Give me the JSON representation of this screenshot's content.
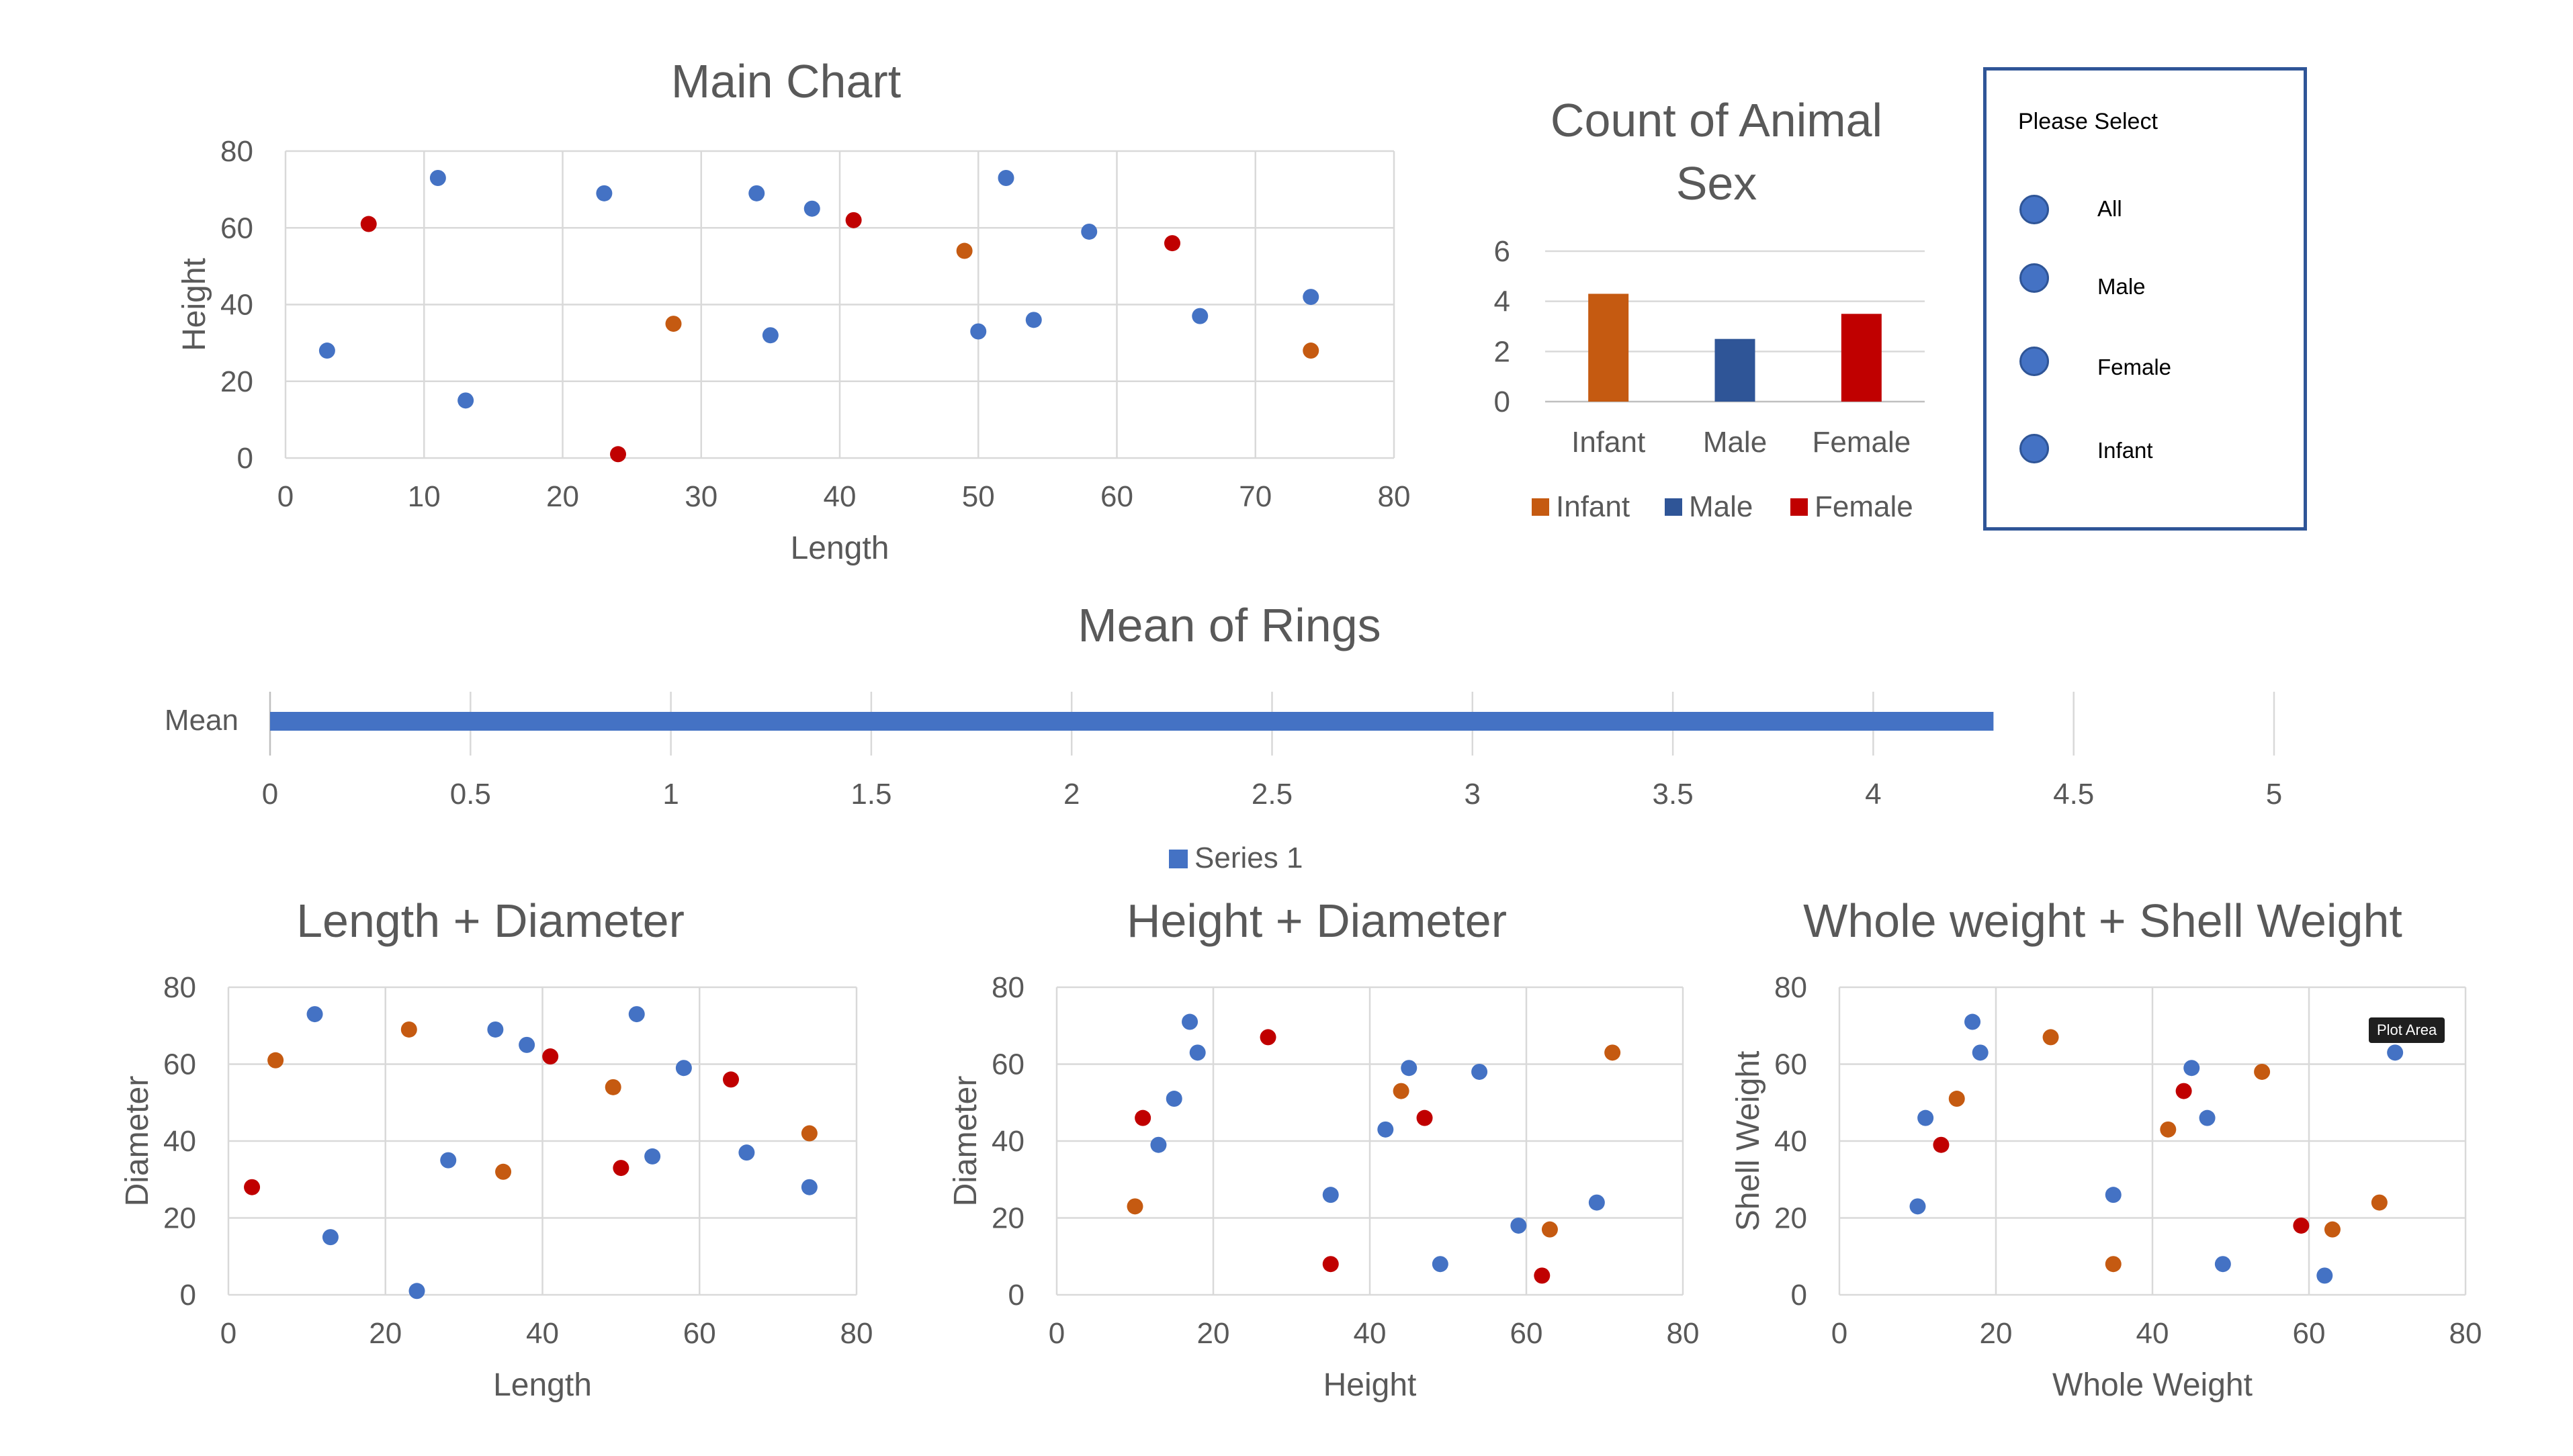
{
  "colors": {
    "infant": "#c55a11",
    "male": "#2f5597",
    "female": "#c00000",
    "blue_point": "#4472c4",
    "orange_point": "#c55a11",
    "red_point": "#c00000",
    "bar_series": "#4472c4"
  },
  "slicer": {
    "title": "Please Select",
    "items": [
      {
        "label": "All"
      },
      {
        "label": "Male"
      },
      {
        "label": "Female"
      },
      {
        "label": "Infant"
      }
    ]
  },
  "tooltip": {
    "label": "Plot Area"
  },
  "chart_data": [
    {
      "type": "scatter",
      "title": "Main Chart",
      "xlabel": "Length",
      "ylabel": "Height",
      "xlim": [
        0,
        80
      ],
      "xticks": [
        0,
        10,
        20,
        30,
        40,
        50,
        60,
        70,
        80
      ],
      "ylim": [
        0,
        80
      ],
      "yticks": [
        0,
        20,
        40,
        60,
        80
      ],
      "grid": true,
      "points": [
        {
          "x": 3,
          "y": 28,
          "color": "blue"
        },
        {
          "x": 6,
          "y": 61,
          "color": "red"
        },
        {
          "x": 11,
          "y": 73,
          "color": "blue"
        },
        {
          "x": 13,
          "y": 15,
          "color": "blue"
        },
        {
          "x": 23,
          "y": 69,
          "color": "blue"
        },
        {
          "x": 24,
          "y": 1,
          "color": "red"
        },
        {
          "x": 28,
          "y": 35,
          "color": "orange"
        },
        {
          "x": 34,
          "y": 69,
          "color": "blue"
        },
        {
          "x": 35,
          "y": 32,
          "color": "blue"
        },
        {
          "x": 38,
          "y": 65,
          "color": "blue"
        },
        {
          "x": 41,
          "y": 62,
          "color": "red"
        },
        {
          "x": 49,
          "y": 54,
          "color": "orange"
        },
        {
          "x": 50,
          "y": 33,
          "color": "blue"
        },
        {
          "x": 52,
          "y": 73,
          "color": "blue"
        },
        {
          "x": 54,
          "y": 36,
          "color": "blue"
        },
        {
          "x": 58,
          "y": 59,
          "color": "blue"
        },
        {
          "x": 64,
          "y": 56,
          "color": "red"
        },
        {
          "x": 66,
          "y": 37,
          "color": "blue"
        },
        {
          "x": 74,
          "y": 28,
          "color": "orange"
        },
        {
          "x": 74,
          "y": 42,
          "color": "blue"
        }
      ]
    },
    {
      "type": "bar",
      "title": "Count of Animal Sex",
      "title_lines": [
        "Count of Animal",
        "Sex"
      ],
      "categories": [
        "Infant",
        "Male",
        "Female"
      ],
      "values": [
        4.3,
        2.5,
        3.5
      ],
      "ylim": [
        0,
        6
      ],
      "yticks": [
        0,
        2,
        4,
        6
      ],
      "legend": [
        "Infant",
        "Male",
        "Female"
      ],
      "legend_position": "bottom",
      "grid": true
    },
    {
      "type": "bar",
      "orientation": "horizontal",
      "title": "Mean of Rings",
      "categories": [
        "Mean"
      ],
      "series": [
        {
          "name": "Series 1",
          "values": [
            4.3
          ]
        }
      ],
      "xlim": [
        0,
        5
      ],
      "xticks": [
        "0",
        "0.5",
        "1",
        "1.5",
        "2",
        "2.5",
        "3",
        "3.5",
        "4",
        "4.5",
        "5"
      ],
      "legend_position": "bottom",
      "grid": true
    },
    {
      "type": "scatter",
      "title": "Length + Diameter",
      "xlabel": "Length",
      "ylabel": "Diameter",
      "xlim": [
        0,
        80
      ],
      "xticks": [
        0,
        20,
        40,
        60,
        80
      ],
      "ylim": [
        0,
        80
      ],
      "yticks": [
        0,
        20,
        40,
        60,
        80
      ],
      "grid": true,
      "points": [
        {
          "x": 3,
          "y": 28,
          "color": "red"
        },
        {
          "x": 6,
          "y": 61,
          "color": "orange"
        },
        {
          "x": 11,
          "y": 73,
          "color": "blue"
        },
        {
          "x": 13,
          "y": 15,
          "color": "blue"
        },
        {
          "x": 23,
          "y": 69,
          "color": "orange"
        },
        {
          "x": 24,
          "y": 1,
          "color": "blue"
        },
        {
          "x": 28,
          "y": 35,
          "color": "blue"
        },
        {
          "x": 34,
          "y": 69,
          "color": "blue"
        },
        {
          "x": 35,
          "y": 32,
          "color": "orange"
        },
        {
          "x": 38,
          "y": 65,
          "color": "blue"
        },
        {
          "x": 41,
          "y": 62,
          "color": "red"
        },
        {
          "x": 49,
          "y": 54,
          "color": "orange"
        },
        {
          "x": 50,
          "y": 33,
          "color": "red"
        },
        {
          "x": 52,
          "y": 73,
          "color": "blue"
        },
        {
          "x": 54,
          "y": 36,
          "color": "blue"
        },
        {
          "x": 58,
          "y": 59,
          "color": "blue"
        },
        {
          "x": 64,
          "y": 56,
          "color": "red"
        },
        {
          "x": 66,
          "y": 37,
          "color": "blue"
        },
        {
          "x": 74,
          "y": 28,
          "color": "blue"
        },
        {
          "x": 74,
          "y": 42,
          "color": "orange"
        }
      ]
    },
    {
      "type": "scatter",
      "title": "Height + Diameter",
      "xlabel": "Height",
      "ylabel": "Diameter",
      "xlim": [
        0,
        80
      ],
      "xticks": [
        0,
        20,
        40,
        60,
        80
      ],
      "ylim": [
        0,
        80
      ],
      "yticks": [
        0,
        20,
        40,
        60,
        80
      ],
      "grid": true,
      "points": [
        {
          "x": 10,
          "y": 23,
          "color": "orange"
        },
        {
          "x": 11,
          "y": 46,
          "color": "red"
        },
        {
          "x": 13,
          "y": 39,
          "color": "blue"
        },
        {
          "x": 15,
          "y": 51,
          "color": "blue"
        },
        {
          "x": 17,
          "y": 71,
          "color": "blue"
        },
        {
          "x": 18,
          "y": 63,
          "color": "blue"
        },
        {
          "x": 27,
          "y": 67,
          "color": "red"
        },
        {
          "x": 35,
          "y": 26,
          "color": "blue"
        },
        {
          "x": 35,
          "y": 8,
          "color": "red"
        },
        {
          "x": 42,
          "y": 43,
          "color": "blue"
        },
        {
          "x": 44,
          "y": 53,
          "color": "orange"
        },
        {
          "x": 45,
          "y": 59,
          "color": "blue"
        },
        {
          "x": 47,
          "y": 46,
          "color": "red"
        },
        {
          "x": 49,
          "y": 8,
          "color": "blue"
        },
        {
          "x": 54,
          "y": 58,
          "color": "blue"
        },
        {
          "x": 59,
          "y": 18,
          "color": "blue"
        },
        {
          "x": 62,
          "y": 5,
          "color": "red"
        },
        {
          "x": 63,
          "y": 17,
          "color": "orange"
        },
        {
          "x": 69,
          "y": 24,
          "color": "blue"
        },
        {
          "x": 71,
          "y": 63,
          "color": "orange"
        }
      ]
    },
    {
      "type": "scatter",
      "title": "Whole weight + Shell Weight",
      "xlabel": "Whole Weight",
      "ylabel": "Shell Weight",
      "xlim": [
        0,
        80
      ],
      "xticks": [
        0,
        20,
        40,
        60,
        80
      ],
      "ylim": [
        0,
        80
      ],
      "yticks": [
        0,
        20,
        40,
        60,
        80
      ],
      "grid": true,
      "points": [
        {
          "x": 10,
          "y": 23,
          "color": "blue"
        },
        {
          "x": 11,
          "y": 46,
          "color": "blue"
        },
        {
          "x": 13,
          "y": 39,
          "color": "red"
        },
        {
          "x": 15,
          "y": 51,
          "color": "orange"
        },
        {
          "x": 17,
          "y": 71,
          "color": "blue"
        },
        {
          "x": 18,
          "y": 63,
          "color": "blue"
        },
        {
          "x": 27,
          "y": 67,
          "color": "orange"
        },
        {
          "x": 35,
          "y": 26,
          "color": "blue"
        },
        {
          "x": 35,
          "y": 8,
          "color": "orange"
        },
        {
          "x": 42,
          "y": 43,
          "color": "orange"
        },
        {
          "x": 44,
          "y": 53,
          "color": "red"
        },
        {
          "x": 45,
          "y": 59,
          "color": "blue"
        },
        {
          "x": 47,
          "y": 46,
          "color": "blue"
        },
        {
          "x": 49,
          "y": 8,
          "color": "blue"
        },
        {
          "x": 54,
          "y": 58,
          "color": "orange"
        },
        {
          "x": 59,
          "y": 18,
          "color": "red"
        },
        {
          "x": 62,
          "y": 5,
          "color": "blue"
        },
        {
          "x": 63,
          "y": 17,
          "color": "orange"
        },
        {
          "x": 69,
          "y": 24,
          "color": "orange"
        },
        {
          "x": 71,
          "y": 63,
          "color": "blue"
        }
      ]
    }
  ]
}
